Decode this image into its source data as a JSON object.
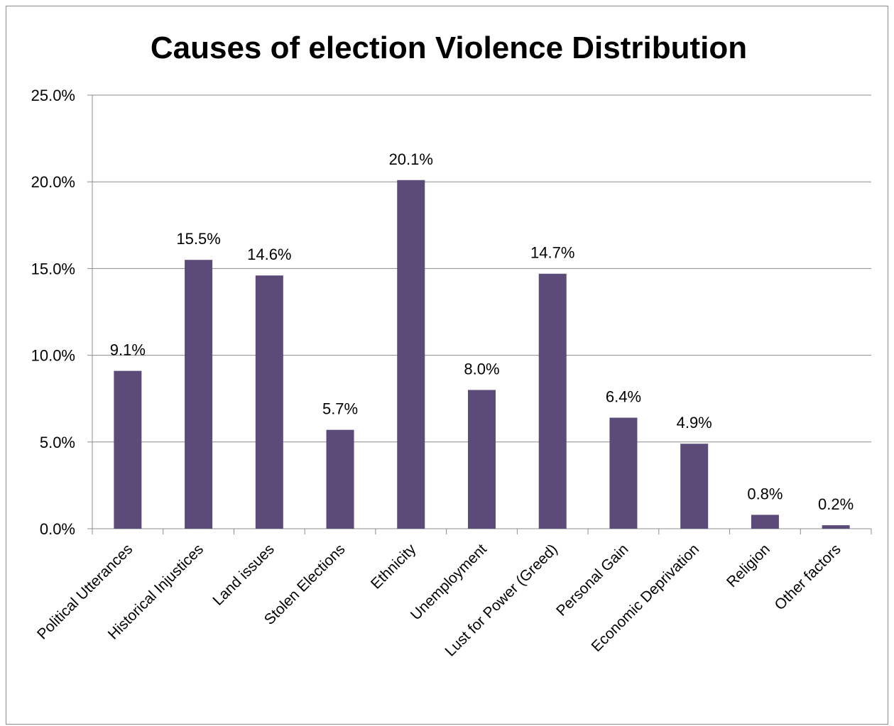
{
  "chart_data": {
    "type": "bar",
    "title": "Causes of election Violence Distribution",
    "xlabel": "",
    "ylabel": "",
    "ylim": [
      0,
      25
    ],
    "yticks": [
      "0.0%",
      "5.0%",
      "10.0%",
      "15.0%",
      "20.0%",
      "25.0%"
    ],
    "grid": true,
    "categories": [
      "Political Utterances",
      "Historical Injustices",
      "Land issues",
      "Stolen Elections",
      "Ethnicity",
      "Unemployment",
      "Lust for Power (Greed)",
      "Personal Gain",
      "Economic Deprivation",
      "Religion",
      "Other factors"
    ],
    "values": [
      9.1,
      15.5,
      14.6,
      5.7,
      20.1,
      8.0,
      14.7,
      6.4,
      4.9,
      0.8,
      0.2
    ],
    "data_labels": [
      "9.1%",
      "15.5%",
      "14.6%",
      "5.7%",
      "20.1%",
      "8.0%",
      "14.7%",
      "6.4%",
      "4.9%",
      "0.8%",
      "0.2%"
    ],
    "bar_color": "#5c4a78",
    "grid_color": "#8c8c8c"
  }
}
